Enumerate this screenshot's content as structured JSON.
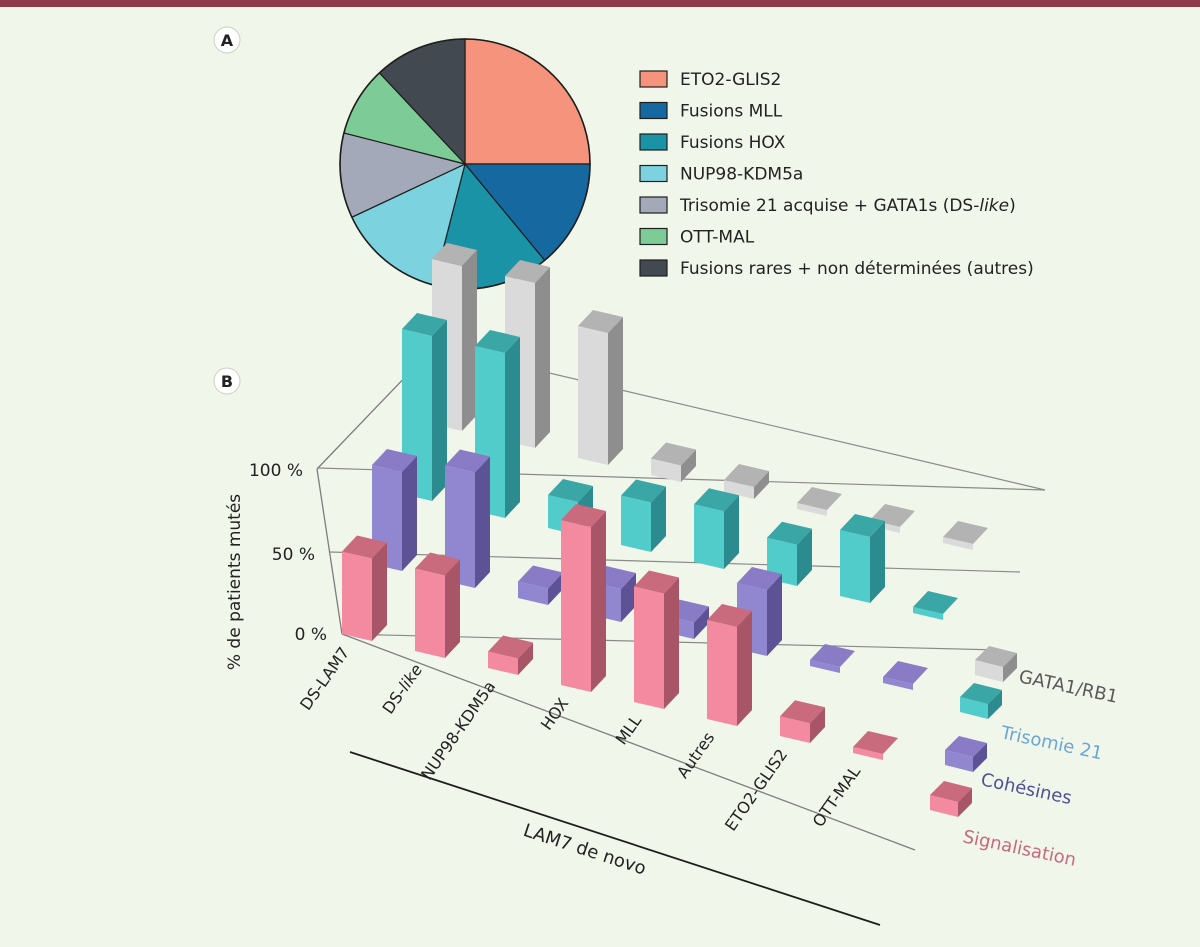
{
  "panel_labels": {
    "a": "A",
    "b": "B"
  },
  "chart_data": [
    {
      "type": "pie",
      "title": "",
      "slices": [
        {
          "label": "ETO2-GLIS2",
          "value": 25,
          "color": "#f5937d"
        },
        {
          "label": "Fusions MLL",
          "value": 14,
          "color": "#1668a0"
        },
        {
          "label": "Fusions HOX",
          "value": 15,
          "color": "#1a93a6"
        },
        {
          "label": "NUP98-KDM5a",
          "value": 14,
          "color": "#7cd2df"
        },
        {
          "label": "Trisomie 21 acquise + GATA1s (DS-",
          "label_italic": "like",
          "label_end": ")",
          "value": 11,
          "color": "#a3a9b8"
        },
        {
          "label": "OTT-MAL",
          "value": 9,
          "color": "#7dcc97"
        },
        {
          "label": "Fusions rares + non déterminées (autres)",
          "value": 12,
          "color": "#424950"
        }
      ]
    },
    {
      "type": "bar3d",
      "ylabel": "% de patients mutés",
      "xlabel": "LAM7 de novo",
      "y_ticks": [
        "0 %",
        "50 %",
        "100 %"
      ],
      "ylim": [
        0,
        100
      ],
      "categories": [
        {
          "text": "DS-LAM7"
        },
        {
          "text": "DS-",
          "italic": "like"
        },
        {
          "text": "NUP98-KDM5a"
        },
        {
          "text": "HOX"
        },
        {
          "text": "MLL"
        },
        {
          "text": "Autres"
        },
        {
          "text": "ETO2-GLIS2"
        },
        {
          "text": "OTT-MAL"
        }
      ],
      "series": [
        {
          "name": "Signalisation",
          "label_color": "#c66a80",
          "front": "#f48aa0",
          "side": "#a85568",
          "top": "#c96a7d",
          "values": [
            50,
            50,
            10,
            100,
            70,
            60,
            12,
            0
          ]
        },
        {
          "name": "Cohésines",
          "label_color": "#4e4f95",
          "front": "#9186d0",
          "side": "#5d5296",
          "top": "#8a7bc6",
          "values": [
            60,
            70,
            10,
            20,
            10,
            40,
            0,
            0
          ]
        },
        {
          "name": "Trisomie 21",
          "label_color": "#6aa6da",
          "front": "#52ccca",
          "side": "#2c8b8e",
          "top": "#3ba6a6",
          "values": [
            100,
            100,
            20,
            30,
            35,
            25,
            40,
            0
          ]
        },
        {
          "name": "GATA1/RB1",
          "label_color": "#595959",
          "front": "#dadada",
          "side": "#8e8e8e",
          "top": "#b3b3b3",
          "values": [
            100,
            100,
            80,
            10,
            5,
            0,
            0,
            0
          ]
        }
      ]
    }
  ]
}
